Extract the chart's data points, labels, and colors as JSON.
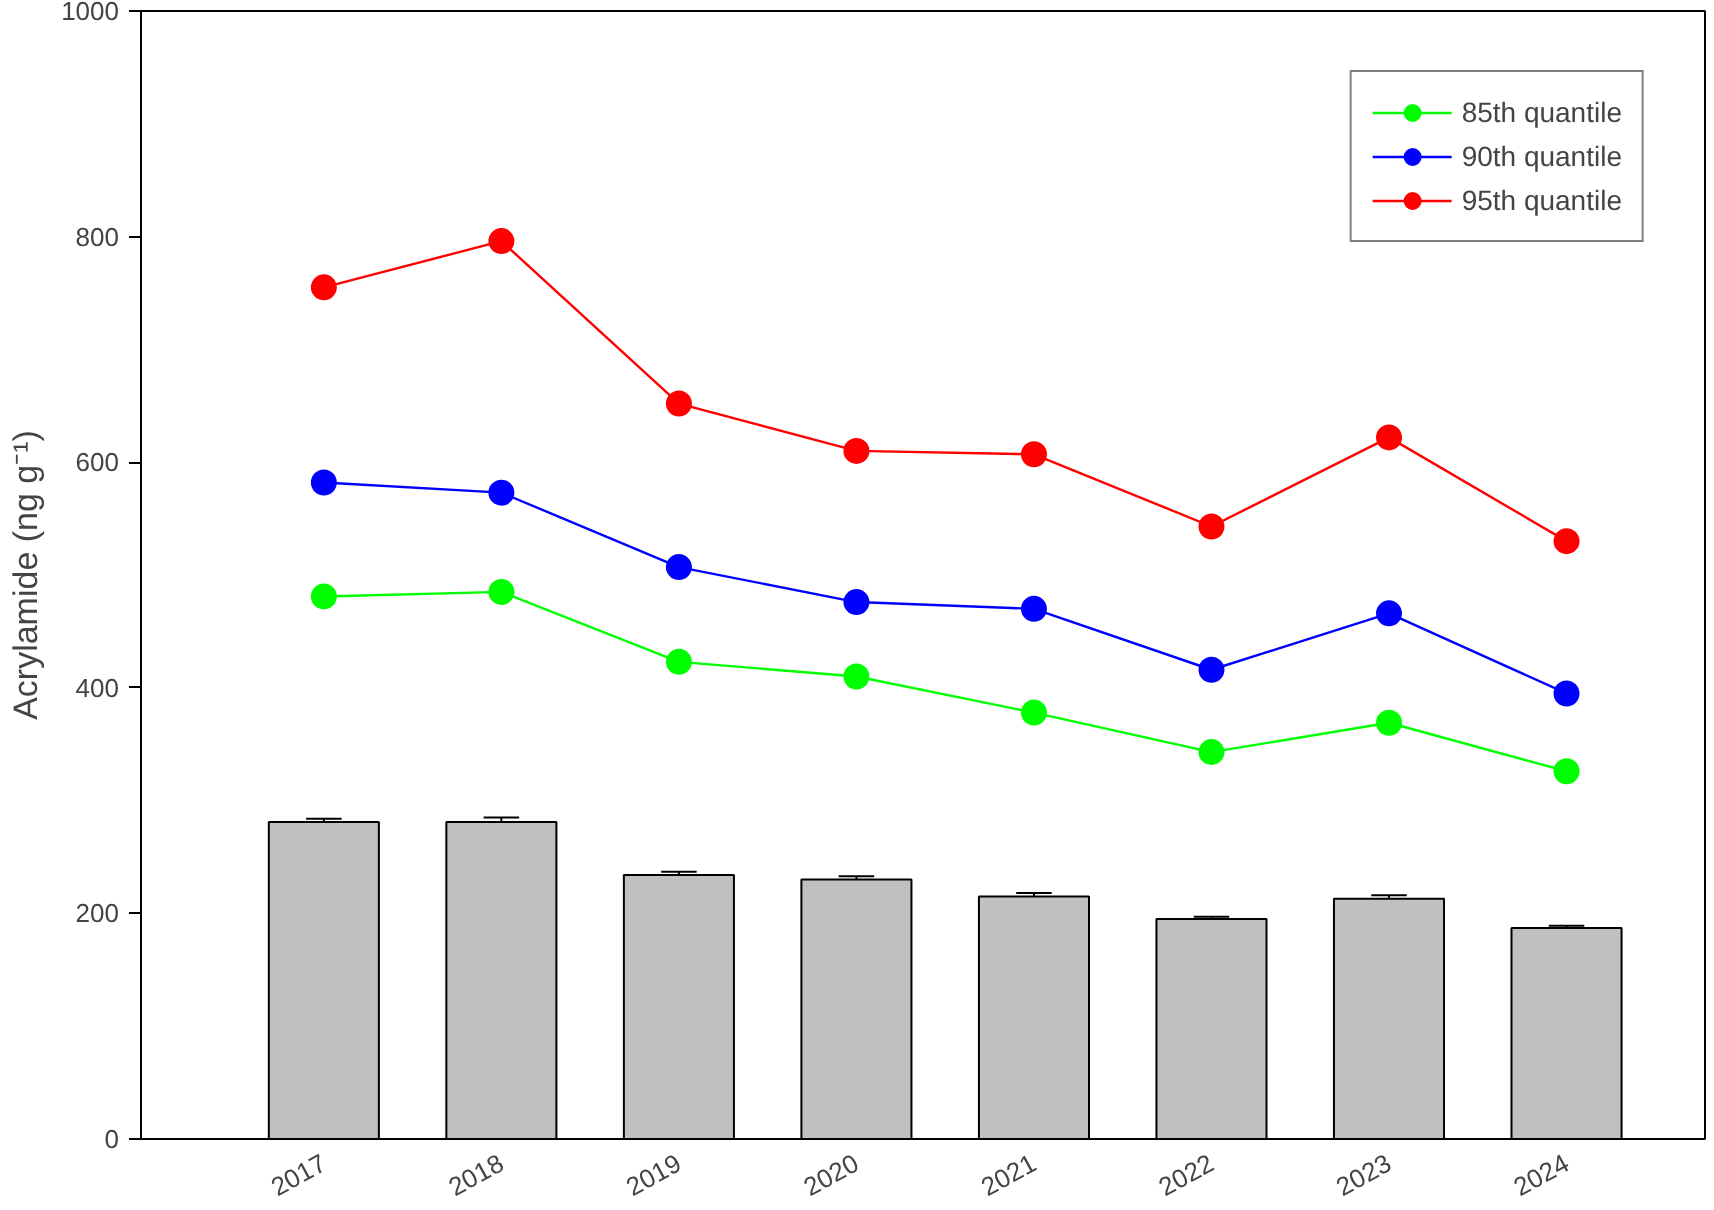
{
  "chart_data": {
    "type": "line",
    "ylabel": "Acrylamide (ng g⁻¹)",
    "categories": [
      "2017",
      "2018",
      "2019",
      "2020",
      "2021",
      "2022",
      "2023",
      "2024"
    ],
    "series": [
      {
        "type": "bar",
        "color": "#c0c0c0",
        "values": [
          281,
          281,
          234,
          230,
          215,
          195,
          213,
          187
        ],
        "errors": [
          3,
          4,
          3,
          3,
          3,
          2,
          3,
          2
        ]
      },
      {
        "name": "85th quantile",
        "color": "#00ff00",
        "values": [
          481,
          485,
          423,
          410,
          378,
          343,
          369,
          326
        ]
      },
      {
        "name": "90th quantile",
        "color": "#0000ff",
        "values": [
          582,
          573,
          507,
          476,
          470,
          416,
          466,
          395
        ]
      },
      {
        "name": "95th quantile",
        "color": "#ff0000",
        "values": [
          755,
          796,
          652,
          610,
          607,
          543,
          622,
          530
        ]
      }
    ],
    "ylim": [
      0,
      1000
    ],
    "yticks": [
      0,
      200,
      400,
      600,
      800,
      1000
    ],
    "marker": "circle",
    "legend": "top right",
    "grid": false
  }
}
